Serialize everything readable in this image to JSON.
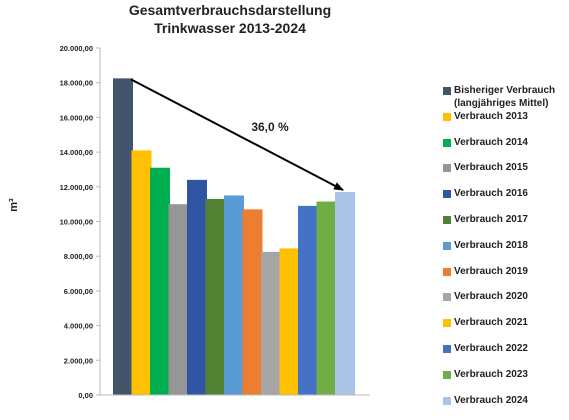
{
  "chart_data": {
    "type": "bar",
    "title_lines": [
      "Gesamtverbrauchsdarstellung",
      "Trinkwasser 2013-2024"
    ],
    "ylabel": "m³",
    "ylim": [
      0,
      20000
    ],
    "y_ticks": [
      "0,00",
      "2.000,00",
      "4.000,00",
      "6.000,00",
      "8.000,00",
      "10.000,00",
      "12.000,00",
      "14.000,00",
      "16.000,00",
      "18.000,00",
      "20.000,00"
    ],
    "y_tick_values": [
      0,
      2000,
      4000,
      6000,
      8000,
      10000,
      12000,
      14000,
      16000,
      18000,
      20000
    ],
    "annotation": "36,0 %",
    "arrow": {
      "from_index": 0,
      "to_index": 12
    },
    "grid": false,
    "legend_position": "right",
    "series": [
      {
        "name": "Bisheriger Verbrauch (langjähriges Mittel)",
        "value": 18250,
        "color": "#44546A"
      },
      {
        "name": "Verbrauch 2013",
        "value": 14100,
        "color": "#FFC000"
      },
      {
        "name": "Verbrauch 2014",
        "value": 13100,
        "color": "#00B050"
      },
      {
        "name": "Verbrauch 2015",
        "value": 11000,
        "color": "#969696"
      },
      {
        "name": "Verbrauch 2016",
        "value": 12400,
        "color": "#2F55A4"
      },
      {
        "name": "Verbrauch 2017",
        "value": 11300,
        "color": "#548235"
      },
      {
        "name": "Verbrauch 2018",
        "value": 11500,
        "color": "#5B9BD5"
      },
      {
        "name": "Verbrauch 2019",
        "value": 10700,
        "color": "#ED7D31"
      },
      {
        "name": "Verbrauch 2020",
        "value": 8250,
        "color": "#A5A5A5"
      },
      {
        "name": "Verbrauch 2021",
        "value": 8450,
        "color": "#FFC000"
      },
      {
        "name": "Verbrauch 2022",
        "value": 10900,
        "color": "#4472C4"
      },
      {
        "name": "Verbrauch 2023",
        "value": 11150,
        "color": "#70AD47"
      },
      {
        "name": "Verbrauch 2024",
        "value": 11700,
        "color": "#A9C4E6"
      }
    ]
  }
}
